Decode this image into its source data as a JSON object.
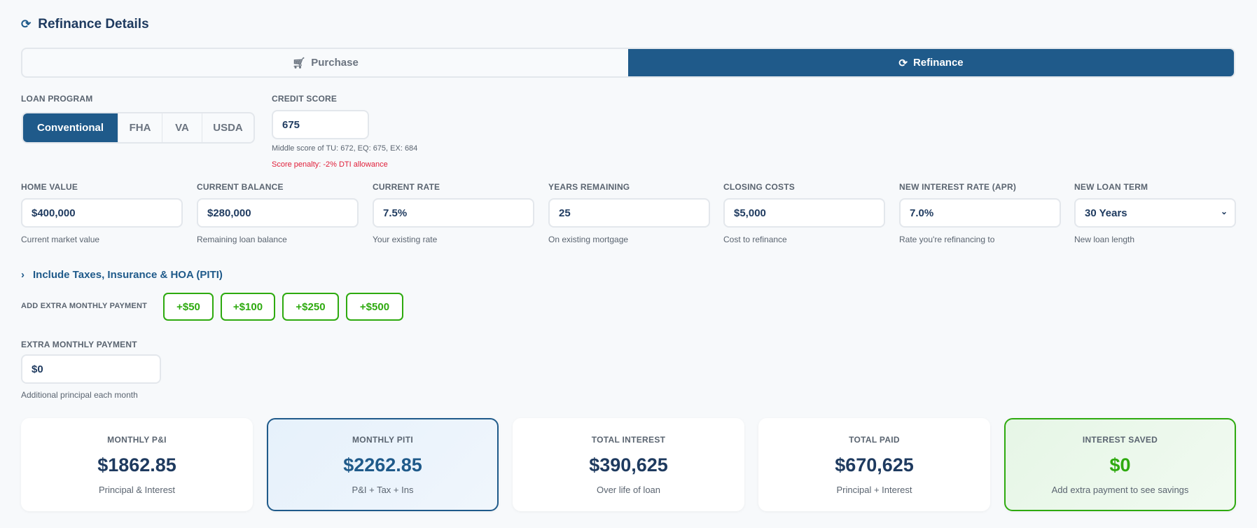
{
  "header": {
    "title": "Refinance Details"
  },
  "mode_tabs": [
    {
      "label": "Purchase",
      "active": false
    },
    {
      "label": "Refinance",
      "active": true
    }
  ],
  "loan_program": {
    "label": "LOAN PROGRAM",
    "options": [
      "Conventional",
      "FHA",
      "VA",
      "USDA"
    ],
    "selected": "Conventional"
  },
  "credit_score": {
    "label": "CREDIT SCORE",
    "value": "675",
    "helper": "Middle score of TU: 672, EQ: 675, EX: 684",
    "penalty": "Score penalty: -2% DTI allowance"
  },
  "fields": [
    {
      "label": "HOME VALUE",
      "value": "$400,000",
      "helper": "Current market value"
    },
    {
      "label": "CURRENT BALANCE",
      "value": "$280,000",
      "helper": "Remaining loan balance"
    },
    {
      "label": "CURRENT RATE",
      "value": "7.5%",
      "helper": "Your existing rate"
    },
    {
      "label": "YEARS REMAINING",
      "value": "25",
      "helper": "On existing mortgage"
    },
    {
      "label": "CLOSING COSTS",
      "value": "$5,000",
      "helper": "Cost to refinance"
    },
    {
      "label": "NEW INTEREST RATE (APR)",
      "value": "7.0%",
      "helper": "Rate you're refinancing to"
    },
    {
      "label": "NEW LOAN TERM",
      "value": "30 Years",
      "helper": "New loan length"
    }
  ],
  "piti_toggle": "Include Taxes, Insurance & HOA (PITI)",
  "extra": {
    "quick_label": "ADD EXTRA MONTHLY PAYMENT",
    "buttons": [
      "+$50",
      "+$100",
      "+$250",
      "+$500"
    ],
    "label": "EXTRA MONTHLY PAYMENT",
    "value": "$0",
    "helper": "Additional principal each month"
  },
  "results": [
    {
      "label": "MONTHLY P&I",
      "value": "$1862.85",
      "sub": "Principal & Interest"
    },
    {
      "label": "MONTHLY PITI",
      "value": "$2262.85",
      "sub": "P&I + Tax + Ins"
    },
    {
      "label": "TOTAL INTEREST",
      "value": "$390,625",
      "sub": "Over life of loan"
    },
    {
      "label": "TOTAL PAID",
      "value": "$670,625",
      "sub": "Principal + Interest"
    },
    {
      "label": "INTEREST SAVED",
      "value": "$0",
      "sub": "Add extra payment to see savings"
    }
  ],
  "colors": {
    "primary": "#1f5a8a",
    "navy": "#1e3a5f",
    "green": "#2eaa0f",
    "error": "#e0203a"
  }
}
